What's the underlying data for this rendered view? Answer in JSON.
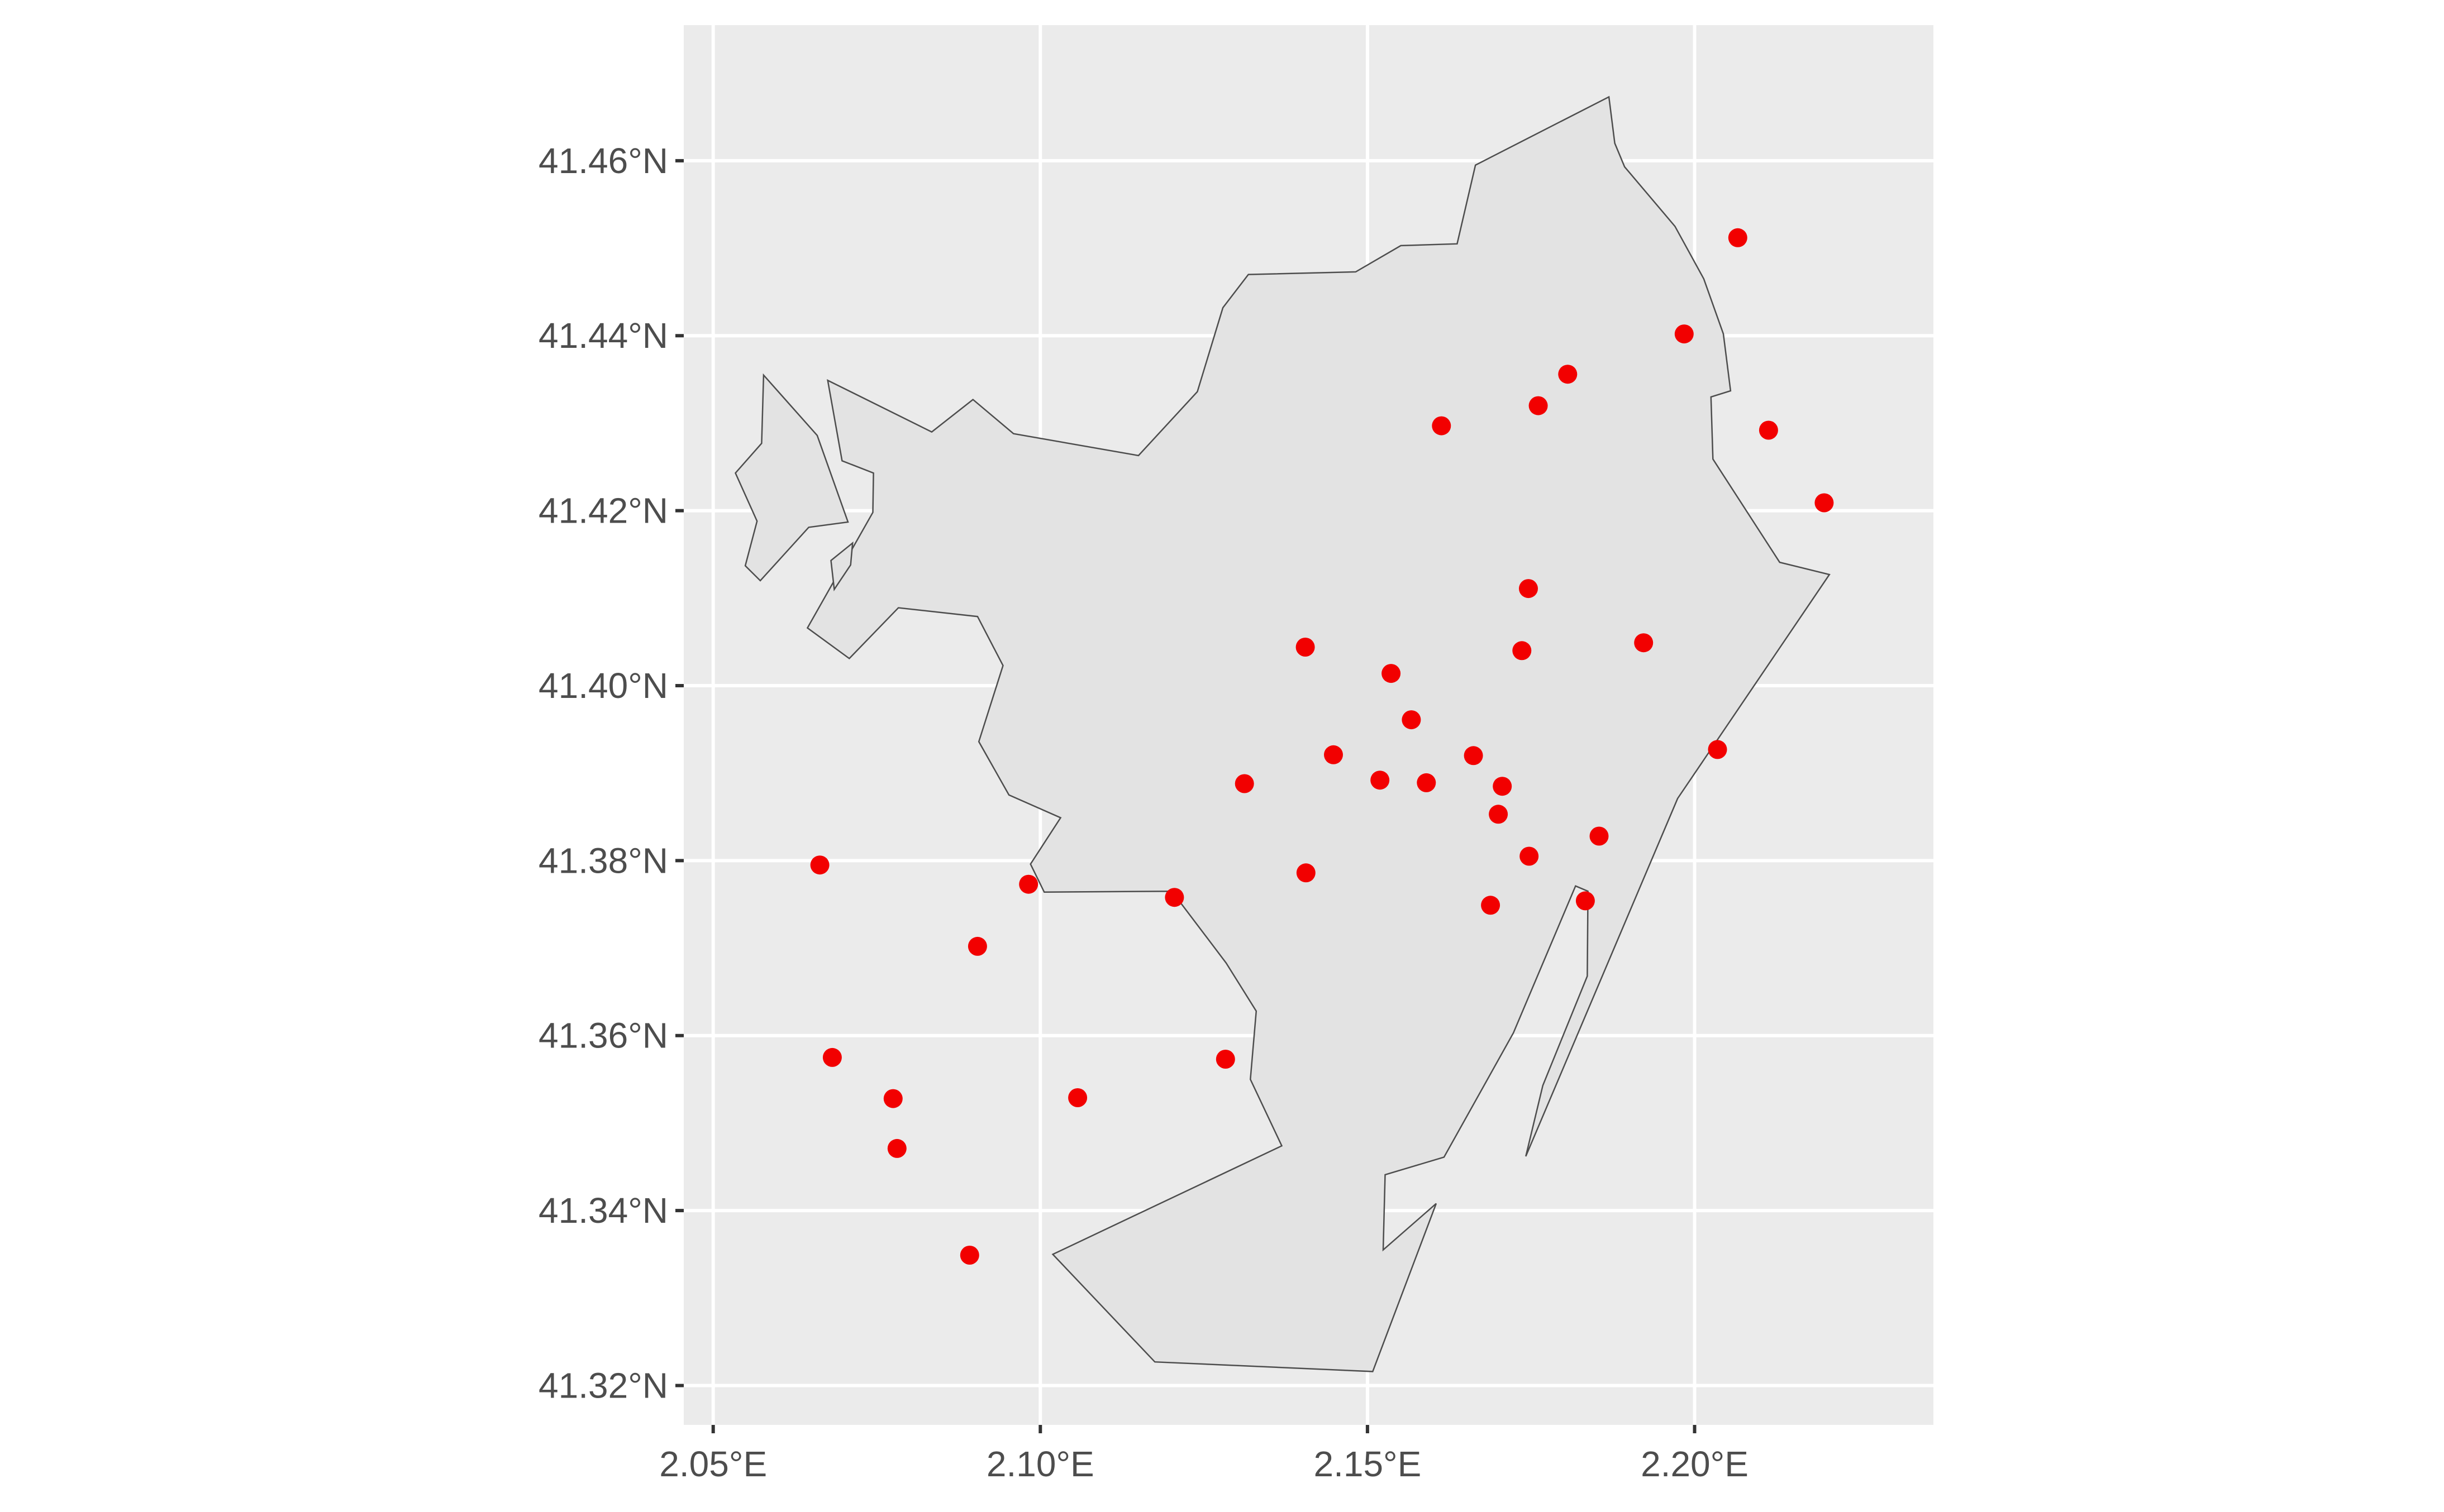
{
  "chart_data": {
    "type": "scatter",
    "title": "",
    "xlabel": "",
    "ylabel": "",
    "xlim": [
      2.0455,
      2.2365
    ],
    "ylim": [
      41.3155,
      41.4755
    ],
    "x_ticks": [
      2.05,
      2.1,
      2.15,
      2.2
    ],
    "x_tick_labels": [
      "2.05°E",
      "2.10°E",
      "2.15°E",
      "2.20°E"
    ],
    "y_ticks": [
      41.32,
      41.34,
      41.36,
      41.38,
      41.4,
      41.42,
      41.44,
      41.46
    ],
    "y_tick_labels": [
      "41.32°N",
      "41.34°N",
      "41.36°N",
      "41.38°N",
      "41.40°N",
      "41.42°N",
      "41.44°N",
      "41.46°N"
    ],
    "grid": true,
    "legend": "none",
    "colors": {
      "panel_background": "#EBEBEB",
      "grid": "#FFFFFF",
      "polygon_fill": "#E3E3E3",
      "polygon_stroke": "#4D4D4D",
      "points": "#F20000",
      "tick_label": "#4D4D4D",
      "tick_mark": "#333333"
    },
    "boundary": {
      "main": [
        [
          2.1869,
          41.4673
        ],
        [
          2.1878,
          41.462
        ],
        [
          2.1893,
          41.4593
        ],
        [
          2.197,
          41.4525
        ],
        [
          2.2014,
          41.4465
        ],
        [
          2.2044,
          41.4402
        ],
        [
          2.2055,
          41.4337
        ],
        [
          2.2025,
          41.433
        ],
        [
          2.2028,
          41.4259
        ],
        [
          2.213,
          41.4141
        ],
        [
          2.2206,
          41.4127
        ],
        [
          2.1974,
          41.3871
        ],
        [
          2.1742,
          41.3462
        ],
        [
          2.1768,
          41.3543
        ],
        [
          2.1836,
          41.3668
        ],
        [
          2.1837,
          41.3765
        ],
        [
          2.1818,
          41.3771
        ],
        [
          2.1723,
          41.3603
        ],
        [
          2.1617,
          41.3461
        ],
        [
          2.1527,
          41.3441
        ],
        [
          2.1524,
          41.3355
        ],
        [
          2.1605,
          41.3408
        ],
        [
          2.1508,
          41.3216
        ],
        [
          2.1175,
          41.3227
        ],
        [
          2.1019,
          41.335
        ],
        [
          2.1369,
          41.3474
        ],
        [
          2.1321,
          41.355
        ],
        [
          2.133,
          41.3628
        ],
        [
          2.1284,
          41.3683
        ],
        [
          2.1201,
          41.3765
        ],
        [
          2.1006,
          41.3764
        ],
        [
          2.0985,
          41.3796
        ],
        [
          2.1031,
          41.3849
        ],
        [
          2.0952,
          41.3875
        ],
        [
          2.0906,
          41.3936
        ],
        [
          2.0943,
          41.4023
        ],
        [
          2.0904,
          41.4079
        ],
        [
          2.0783,
          41.4089
        ],
        [
          2.0708,
          41.4031
        ],
        [
          2.0644,
          41.4066
        ],
        [
          2.0744,
          41.4198
        ],
        [
          2.0745,
          41.4243
        ],
        [
          2.0697,
          41.4257
        ],
        [
          2.0675,
          41.4349
        ],
        [
          2.0834,
          41.429
        ],
        [
          2.0897,
          41.4327
        ],
        [
          2.0959,
          41.4288
        ],
        [
          2.115,
          41.4263
        ],
        [
          2.124,
          41.4336
        ],
        [
          2.1279,
          41.4432
        ],
        [
          2.1318,
          41.447
        ],
        [
          2.1482,
          41.4473
        ],
        [
          2.1551,
          41.4503
        ],
        [
          2.1637,
          41.4505
        ],
        [
          2.1665,
          41.4595
        ]
      ],
      "island": [
        [
          2.0577,
          41.4355
        ],
        [
          2.0659,
          41.4286
        ],
        [
          2.0706,
          41.4187
        ],
        [
          2.0646,
          41.4181
        ],
        [
          2.0572,
          41.412
        ],
        [
          2.0549,
          41.4137
        ],
        [
          2.0567,
          41.4188
        ],
        [
          2.0534,
          41.4243
        ],
        [
          2.0574,
          41.4277
        ]
      ],
      "islet": [
        [
          2.068,
          41.4143
        ],
        [
          2.0713,
          41.4163
        ],
        [
          2.071,
          41.4138
        ],
        [
          2.0685,
          41.411
        ]
      ]
    },
    "x": [
      2.2066,
      2.1984,
      2.1806,
      2.1761,
      2.1613,
      2.2113,
      2.2198,
      2.1746,
      2.1405,
      2.1736,
      2.1922,
      2.1536,
      2.1567,
      2.1448,
      2.1662,
      2.2035,
      2.1519,
      2.159,
      2.1706,
      2.1312,
      2.17,
      2.1854,
      2.1747,
      2.1406,
      2.0663,
      2.0982,
      2.1205,
      2.1688,
      2.1833,
      2.0904,
      2.0682,
      2.1283,
      2.1057,
      2.0775,
      2.0781,
      2.0892
    ],
    "y": [
      41.4512,
      41.4402,
      41.4356,
      41.432,
      41.4297,
      41.4292,
      41.4209,
      41.4111,
      41.4044,
      41.404,
      41.4049,
      41.4014,
      41.3961,
      41.3921,
      41.392,
      41.3927,
      41.3892,
      41.3889,
      41.3885,
      41.3888,
      41.3853,
      41.3828,
      41.3805,
      41.3786,
      41.3795,
      41.3773,
      41.3758,
      41.3749,
      41.3754,
      41.3702,
      41.3575,
      41.3573,
      41.3529,
      41.3528,
      41.3471,
      41.3349
    ]
  }
}
